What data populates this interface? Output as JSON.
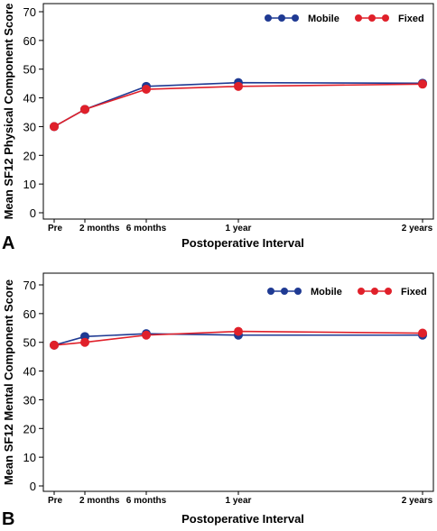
{
  "chart_data": [
    {
      "panel_letter": "A",
      "type": "line",
      "xlabel": "Postoperative Interval",
      "ylabel": "Mean SF12 Physical Component Score",
      "categories": [
        "Pre",
        "2 months",
        "6 months",
        "1 year",
        "2 years"
      ],
      "x_months": [
        0,
        2,
        6,
        12,
        24
      ],
      "ylim": [
        0,
        70
      ],
      "yticks": [
        0,
        10,
        20,
        30,
        40,
        50,
        60,
        70
      ],
      "legend_position": "top-right",
      "grid": false,
      "series": [
        {
          "name": "Mobile",
          "color": "#1f3a93",
          "values": [
            30,
            36,
            44,
            45.3,
            45.1
          ]
        },
        {
          "name": "Fixed",
          "color": "#e0202a",
          "values": [
            30,
            36,
            43,
            44,
            44.8
          ]
        }
      ]
    },
    {
      "panel_letter": "B",
      "type": "line",
      "xlabel": "Postoperative Interval",
      "ylabel": "Mean SF12 Mental Component Score",
      "categories": [
        "Pre",
        "2 months",
        "6 months",
        "1 year",
        "2 years"
      ],
      "x_months": [
        0,
        2,
        6,
        12,
        24
      ],
      "ylim": [
        0,
        70
      ],
      "yticks": [
        0,
        10,
        20,
        30,
        40,
        50,
        60,
        70
      ],
      "legend_position": "top-right",
      "grid": false,
      "series": [
        {
          "name": "Mobile",
          "color": "#1f3a93",
          "values": [
            49,
            52,
            53,
            52.5,
            52.5
          ]
        },
        {
          "name": "Fixed",
          "color": "#e0202a",
          "values": [
            49,
            50,
            52.5,
            53.8,
            53.2
          ]
        }
      ]
    }
  ]
}
